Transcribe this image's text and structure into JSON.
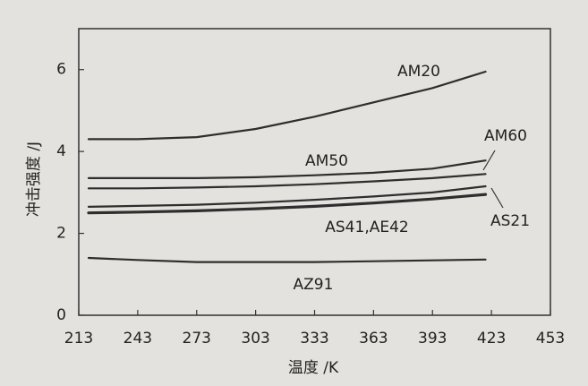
{
  "chart_data": {
    "type": "line",
    "x_label": "温度 /K",
    "y_label": "冲击强度 /J",
    "x": [
      218,
      243,
      273,
      303,
      333,
      363,
      393,
      420
    ],
    "series": [
      {
        "name": "AM20",
        "color": "#2e2e2e",
        "values": [
          4.3,
          4.3,
          4.35,
          4.55,
          4.85,
          5.2,
          5.55,
          5.95
        ]
      },
      {
        "name": "AM50",
        "color": "#2e2e2e",
        "values": [
          3.35,
          3.35,
          3.35,
          3.37,
          3.42,
          3.48,
          3.58,
          3.78
        ]
      },
      {
        "name": "AM60",
        "color": "#2e2e2e",
        "values": [
          3.1,
          3.1,
          3.12,
          3.15,
          3.2,
          3.27,
          3.35,
          3.45
        ]
      },
      {
        "name": "AS21",
        "color": "#2e2e2e",
        "values": [
          2.65,
          2.67,
          2.7,
          2.75,
          2.82,
          2.9,
          3.0,
          3.15
        ]
      },
      {
        "name": "AS41,AE42",
        "color": "#2e2e2e",
        "values": [
          2.5,
          2.52,
          2.55,
          2.6,
          2.66,
          2.74,
          2.84,
          2.95
        ]
      },
      {
        "name": "AZ91",
        "color": "#2e2e2e",
        "values": [
          1.4,
          1.35,
          1.3,
          1.3,
          1.3,
          1.32,
          1.34,
          1.36
        ]
      }
    ],
    "xlim": [
      213,
      453
    ],
    "xticks": [
      213,
      243,
      273,
      303,
      333,
      363,
      393,
      423,
      453
    ],
    "ylim": [
      0,
      7
    ],
    "yticks": [
      0,
      2,
      4,
      6
    ]
  }
}
